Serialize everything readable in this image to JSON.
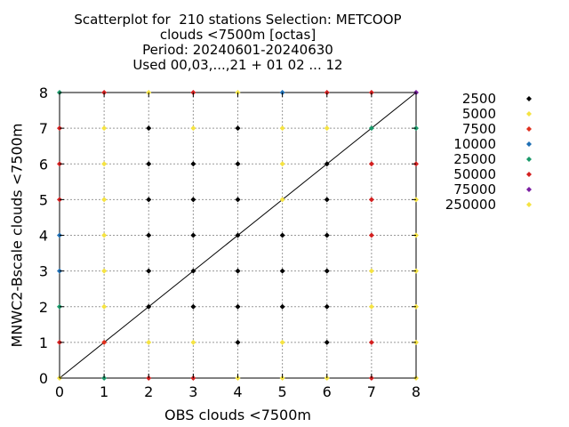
{
  "chart_data": {
    "type": "scatter",
    "title_lines": [
      "Scatterplot for  210 stations Selection: METCOOP",
      "clouds <7500m [octas]",
      "Period: 20240601-20240630",
      "Used 00,03,...,21 + 01 02 ... 12"
    ],
    "xlabel": "OBS clouds <7500m",
    "ylabel": "MNWC2-Bscale clouds <7500m",
    "xlim": [
      0,
      8
    ],
    "ylim": [
      0,
      8
    ],
    "x_ticks": [
      "0",
      "1",
      "2",
      "3",
      "4",
      "5",
      "6",
      "7",
      "8"
    ],
    "y_ticks": [
      "0",
      "1",
      "2",
      "3",
      "4",
      "5",
      "6",
      "7",
      "8"
    ],
    "grid": true,
    "diagonal_line": true,
    "legend_position": "right",
    "legend": [
      {
        "label": "2500",
        "color": "#000000"
      },
      {
        "label": "5000",
        "color": "#f5e342"
      },
      {
        "label": "7500",
        "color": "#e0301e"
      },
      {
        "label": "10000",
        "color": "#1f6fb4"
      },
      {
        "label": "25000",
        "color": "#1a9a6a"
      },
      {
        "label": "50000",
        "color": "#d42020"
      },
      {
        "label": "75000",
        "color": "#7b1fa2"
      },
      {
        "label": "250000",
        "color": "#f5e342"
      }
    ],
    "points": [
      {
        "x": 0,
        "y": 0,
        "cls": "250000"
      },
      {
        "x": 0,
        "y": 1,
        "cls": "50000"
      },
      {
        "x": 0,
        "y": 2,
        "cls": "25000"
      },
      {
        "x": 0,
        "y": 3,
        "cls": "10000"
      },
      {
        "x": 0,
        "y": 4,
        "cls": "10000"
      },
      {
        "x": 0,
        "y": 5,
        "cls": "50000"
      },
      {
        "x": 0,
        "y": 6,
        "cls": "50000"
      },
      {
        "x": 0,
        "y": 7,
        "cls": "50000"
      },
      {
        "x": 0,
        "y": 8,
        "cls": "25000"
      },
      {
        "x": 1,
        "y": 0,
        "cls": "25000"
      },
      {
        "x": 1,
        "y": 1,
        "cls": "7500"
      },
      {
        "x": 1,
        "y": 2,
        "cls": "250000"
      },
      {
        "x": 1,
        "y": 3,
        "cls": "250000"
      },
      {
        "x": 1,
        "y": 4,
        "cls": "250000"
      },
      {
        "x": 1,
        "y": 5,
        "cls": "250000"
      },
      {
        "x": 1,
        "y": 6,
        "cls": "250000"
      },
      {
        "x": 1,
        "y": 7,
        "cls": "250000"
      },
      {
        "x": 1,
        "y": 8,
        "cls": "50000"
      },
      {
        "x": 2,
        "y": 0,
        "cls": "50000"
      },
      {
        "x": 2,
        "y": 1,
        "cls": "250000"
      },
      {
        "x": 2,
        "y": 2,
        "cls": "2500"
      },
      {
        "x": 2,
        "y": 3,
        "cls": "2500"
      },
      {
        "x": 2,
        "y": 4,
        "cls": "2500"
      },
      {
        "x": 2,
        "y": 5,
        "cls": "2500"
      },
      {
        "x": 2,
        "y": 6,
        "cls": "2500"
      },
      {
        "x": 2,
        "y": 7,
        "cls": "2500"
      },
      {
        "x": 2,
        "y": 8,
        "cls": "250000"
      },
      {
        "x": 3,
        "y": 0,
        "cls": "50000"
      },
      {
        "x": 3,
        "y": 1,
        "cls": "250000"
      },
      {
        "x": 3,
        "y": 2,
        "cls": "2500"
      },
      {
        "x": 3,
        "y": 3,
        "cls": "2500"
      },
      {
        "x": 3,
        "y": 4,
        "cls": "2500"
      },
      {
        "x": 3,
        "y": 5,
        "cls": "2500"
      },
      {
        "x": 3,
        "y": 6,
        "cls": "2500"
      },
      {
        "x": 3,
        "y": 7,
        "cls": "250000"
      },
      {
        "x": 3,
        "y": 8,
        "cls": "50000"
      },
      {
        "x": 4,
        "y": 0,
        "cls": "250000"
      },
      {
        "x": 4,
        "y": 1,
        "cls": "2500"
      },
      {
        "x": 4,
        "y": 2,
        "cls": "2500"
      },
      {
        "x": 4,
        "y": 3,
        "cls": "2500"
      },
      {
        "x": 4,
        "y": 4,
        "cls": "2500"
      },
      {
        "x": 4,
        "y": 5,
        "cls": "2500"
      },
      {
        "x": 4,
        "y": 6,
        "cls": "2500"
      },
      {
        "x": 4,
        "y": 7,
        "cls": "2500"
      },
      {
        "x": 4,
        "y": 8,
        "cls": "250000"
      },
      {
        "x": 5,
        "y": 0,
        "cls": "250000"
      },
      {
        "x": 5,
        "y": 1,
        "cls": "250000"
      },
      {
        "x": 5,
        "y": 2,
        "cls": "2500"
      },
      {
        "x": 5,
        "y": 3,
        "cls": "2500"
      },
      {
        "x": 5,
        "y": 4,
        "cls": "2500"
      },
      {
        "x": 5,
        "y": 5,
        "cls": "250000"
      },
      {
        "x": 5,
        "y": 6,
        "cls": "250000"
      },
      {
        "x": 5,
        "y": 7,
        "cls": "250000"
      },
      {
        "x": 5,
        "y": 8,
        "cls": "10000"
      },
      {
        "x": 6,
        "y": 0,
        "cls": "250000"
      },
      {
        "x": 6,
        "y": 1,
        "cls": "2500"
      },
      {
        "x": 6,
        "y": 2,
        "cls": "2500"
      },
      {
        "x": 6,
        "y": 3,
        "cls": "2500"
      },
      {
        "x": 6,
        "y": 4,
        "cls": "2500"
      },
      {
        "x": 6,
        "y": 5,
        "cls": "2500"
      },
      {
        "x": 6,
        "y": 6,
        "cls": "2500"
      },
      {
        "x": 6,
        "y": 7,
        "cls": "250000"
      },
      {
        "x": 6,
        "y": 8,
        "cls": "50000"
      },
      {
        "x": 7,
        "y": 0,
        "cls": "50000"
      },
      {
        "x": 7,
        "y": 1,
        "cls": "50000"
      },
      {
        "x": 7,
        "y": 2,
        "cls": "250000"
      },
      {
        "x": 7,
        "y": 3,
        "cls": "250000"
      },
      {
        "x": 7,
        "y": 4,
        "cls": "50000"
      },
      {
        "x": 7,
        "y": 5,
        "cls": "50000"
      },
      {
        "x": 7,
        "y": 6,
        "cls": "50000"
      },
      {
        "x": 7,
        "y": 7,
        "cls": "25000"
      },
      {
        "x": 7,
        "y": 8,
        "cls": "50000"
      },
      {
        "x": 8,
        "y": 0,
        "cls": "250000"
      },
      {
        "x": 8,
        "y": 1,
        "cls": "250000"
      },
      {
        "x": 8,
        "y": 2,
        "cls": "250000"
      },
      {
        "x": 8,
        "y": 3,
        "cls": "250000"
      },
      {
        "x": 8,
        "y": 4,
        "cls": "250000"
      },
      {
        "x": 8,
        "y": 5,
        "cls": "250000"
      },
      {
        "x": 8,
        "y": 6,
        "cls": "50000"
      },
      {
        "x": 8,
        "y": 7,
        "cls": "25000"
      },
      {
        "x": 8,
        "y": 8,
        "cls": "75000"
      }
    ]
  }
}
